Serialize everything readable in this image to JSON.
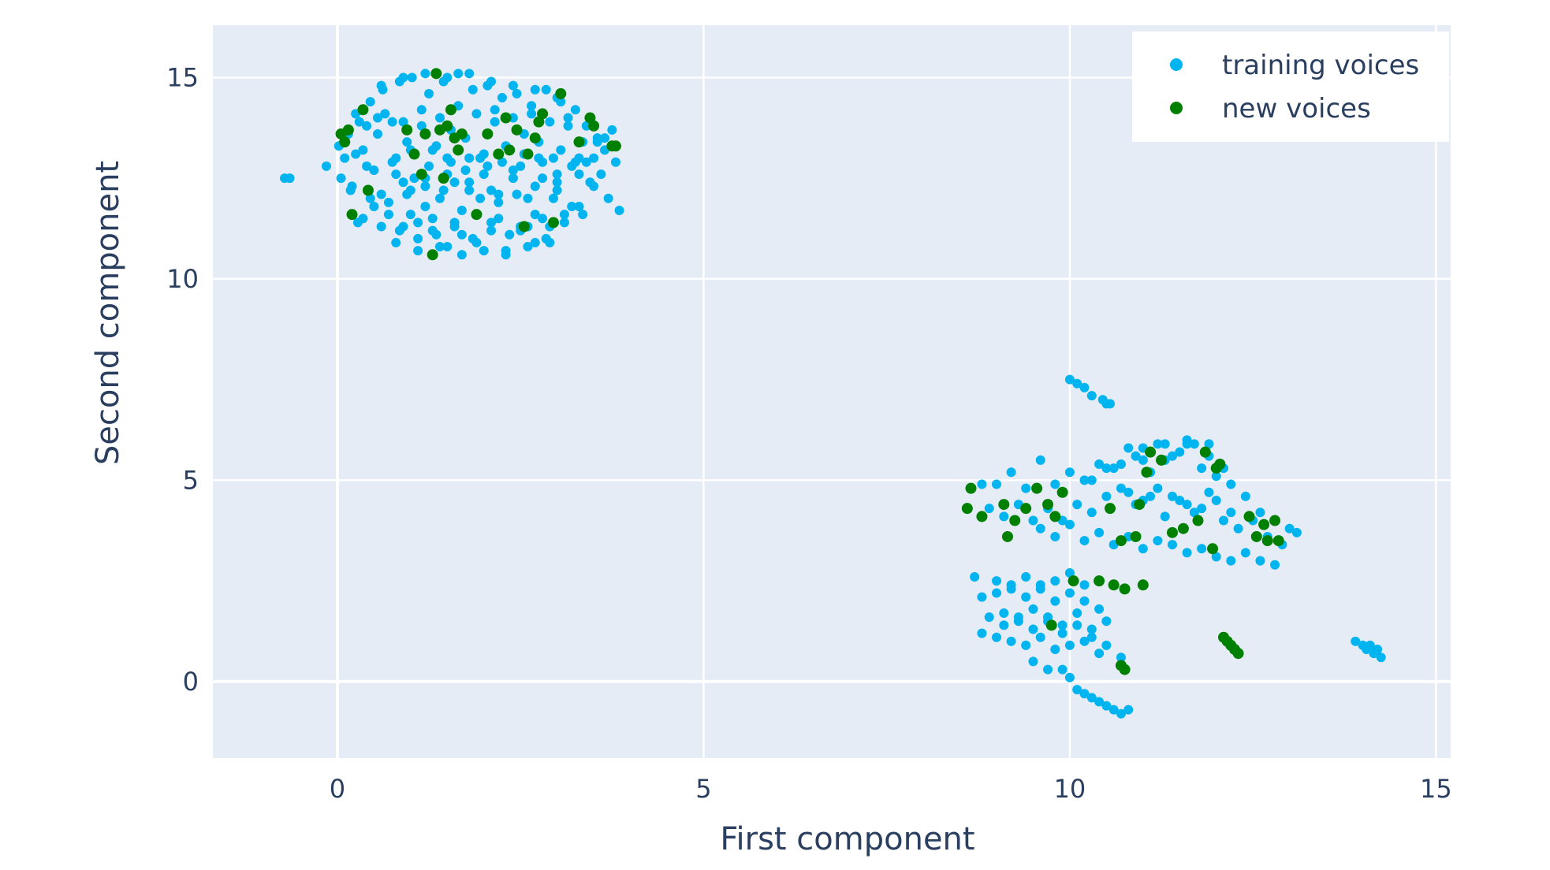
{
  "chart_data": {
    "type": "scatter",
    "title": "",
    "xlabel": "First component",
    "ylabel": "Second component",
    "xlim": [
      -1.7,
      15.2
    ],
    "ylim": [
      -1.9,
      16.3
    ],
    "x_ticks": [
      0,
      5,
      10,
      15
    ],
    "y_ticks": [
      0,
      5,
      10,
      15
    ],
    "x_tick_labels": [
      "0",
      "5",
      "10",
      "15"
    ],
    "y_tick_labels": [
      "0",
      "5",
      "10",
      "15"
    ],
    "grid": true,
    "plot_background": "#e5ecf6",
    "grid_color": "#ffffff",
    "legend_position": "top-right",
    "series": [
      {
        "name": "training voices",
        "color": "#00b4f0",
        "x": [
          -0.72,
          -0.65,
          -0.15,
          0.02,
          0.05,
          0.12,
          0.18,
          0.25,
          0.28,
          0.35,
          0.4,
          0.45,
          0.5,
          0.55,
          0.6,
          0.62,
          0.7,
          0.75,
          0.8,
          0.85,
          0.9,
          0.95,
          1.0,
          1.02,
          1.1,
          1.15,
          1.2,
          1.25,
          1.3,
          1.35,
          1.4,
          1.45,
          1.5,
          1.55,
          1.6,
          1.65,
          1.7,
          1.75,
          1.8,
          1.85,
          1.9,
          1.95,
          2.0,
          2.05,
          2.1,
          2.15,
          2.2,
          2.25,
          2.3,
          2.35,
          2.4,
          2.45,
          2.5,
          2.55,
          2.6,
          2.65,
          2.7,
          2.75,
          2.8,
          2.85,
          2.9,
          2.95,
          3.0,
          3.05,
          3.1,
          3.15,
          3.2,
          3.25,
          3.3,
          3.35,
          3.4,
          3.45,
          3.5,
          3.55,
          3.6,
          3.65,
          3.7,
          3.75,
          3.8,
          3.85,
          0.1,
          0.3,
          0.55,
          0.8,
          1.05,
          1.3,
          1.55,
          1.8,
          2.05,
          2.3,
          2.55,
          2.8,
          3.05,
          3.3,
          3.55,
          0.2,
          0.45,
          0.7,
          0.95,
          1.2,
          1.45,
          1.7,
          1.95,
          2.2,
          2.45,
          2.7,
          2.95,
          3.2,
          3.45,
          0.15,
          0.4,
          0.65,
          0.9,
          1.15,
          1.4,
          1.65,
          1.9,
          2.15,
          2.4,
          2.65,
          2.9,
          3.15,
          3.4,
          3.65,
          0.35,
          0.6,
          0.85,
          1.1,
          1.35,
          1.6,
          1.85,
          2.1,
          2.35,
          2.6,
          2.85,
          3.1,
          3.35,
          0.25,
          0.5,
          0.75,
          1.0,
          1.25,
          1.5,
          1.75,
          2.0,
          2.25,
          2.5,
          2.75,
          3.0,
          3.25,
          3.5,
          0.6,
          0.9,
          1.2,
          1.5,
          1.8,
          2.1,
          2.4,
          2.7,
          3.0,
          0.8,
          1.1,
          1.4,
          1.7,
          2.0,
          2.3,
          2.6,
          2.9,
          1.0,
          1.3,
          1.6,
          1.9,
          2.2,
          2.5,
          2.8,
          0.9,
          1.2,
          1.5,
          1.8,
          2.1,
          2.4,
          2.7,
          3.0,
          3.3,
          10.0,
          10.1,
          10.2,
          10.3,
          10.45,
          10.5,
          10.55,
          8.8,
          8.9,
          9.0,
          9.1,
          9.2,
          9.3,
          9.4,
          9.5,
          9.6,
          9.7,
          9.8,
          9.9,
          10.0,
          10.1,
          10.2,
          10.3,
          10.4,
          10.5,
          10.6,
          10.7,
          10.8,
          10.9,
          11.0,
          11.1,
          11.2,
          11.3,
          11.4,
          11.5,
          11.6,
          11.7,
          11.8,
          11.9,
          12.0,
          12.1,
          12.2,
          12.3,
          12.4,
          12.5,
          12.6,
          12.7,
          12.8,
          12.9,
          13.0,
          13.1,
          9.6,
          9.8,
          10.0,
          10.2,
          10.4,
          10.6,
          10.8,
          11.0,
          11.2,
          11.4,
          11.6,
          11.8,
          12.0,
          12.2,
          12.4,
          12.6,
          12.8,
          10.3,
          10.5,
          10.7,
          10.9,
          11.1,
          11.3,
          11.5,
          11.7,
          11.9,
          12.1,
          10.8,
          11.0,
          11.2,
          11.4,
          11.6,
          11.8,
          12.0,
          12.2,
          11.0,
          11.3,
          11.6,
          11.9,
          8.7,
          8.8,
          8.9,
          9.0,
          9.1,
          9.2,
          9.3,
          9.4,
          9.5,
          9.6,
          9.7,
          9.8,
          9.9,
          10.0,
          10.1,
          10.2,
          10.3,
          10.4,
          10.5,
          8.8,
          9.0,
          9.2,
          9.4,
          9.6,
          9.8,
          10.0,
          10.2,
          10.4,
          9.0,
          9.2,
          9.4,
          9.6,
          9.8,
          10.0,
          10.2,
          9.1,
          9.3,
          9.5,
          9.7,
          9.9,
          10.1,
          10.3,
          10.5,
          10.7,
          9.5,
          9.7,
          9.9,
          10.0,
          10.1,
          10.2,
          10.3,
          10.4,
          10.5,
          10.6,
          10.7,
          10.8,
          13.9,
          14.0,
          14.05,
          14.1,
          14.15,
          14.2,
          14.25
        ],
        "y": [
          12.5,
          12.5,
          12.8,
          13.3,
          12.5,
          13.6,
          12.2,
          14.1,
          11.4,
          13.2,
          12.8,
          14.4,
          11.8,
          13.6,
          12.1,
          14.7,
          11.6,
          13.9,
          12.6,
          14.9,
          11.3,
          13.4,
          12.2,
          15.0,
          11.0,
          13.8,
          12.5,
          14.6,
          11.2,
          13.3,
          12.0,
          14.9,
          10.8,
          13.7,
          12.4,
          15.1,
          11.1,
          13.5,
          12.2,
          14.7,
          10.9,
          13.0,
          12.6,
          14.8,
          11.4,
          13.9,
          12.1,
          14.5,
          10.7,
          13.2,
          12.7,
          14.6,
          11.2,
          13.6,
          12.0,
          14.3,
          10.9,
          13.4,
          12.5,
          14.7,
          11.3,
          13.0,
          12.2,
          14.4,
          11.6,
          13.8,
          12.8,
          14.2,
          11.8,
          13.4,
          12.9,
          13.9,
          12.3,
          13.5,
          12.6,
          13.2,
          12.0,
          13.7,
          12.9,
          11.7,
          13.0,
          13.9,
          14.0,
          13.0,
          12.5,
          13.2,
          12.9,
          13.0,
          12.8,
          13.3,
          13.1,
          12.9,
          13.2,
          13.0,
          13.4,
          12.3,
          12.0,
          11.9,
          12.1,
          11.8,
          12.2,
          11.7,
          12.0,
          11.9,
          12.1,
          11.6,
          12.0,
          11.8,
          12.4,
          13.6,
          13.8,
          14.1,
          13.9,
          14.2,
          14.0,
          14.3,
          14.1,
          14.2,
          14.0,
          14.1,
          13.9,
          14.0,
          13.8,
          13.5,
          11.5,
          11.3,
          11.2,
          11.4,
          11.1,
          11.3,
          11.0,
          11.2,
          11.1,
          11.3,
          11.0,
          11.4,
          11.6,
          13.1,
          12.7,
          12.9,
          13.2,
          12.8,
          13.0,
          12.7,
          13.1,
          12.9,
          12.8,
          13.0,
          12.6,
          12.9,
          13.0,
          14.8,
          15.0,
          15.1,
          15.0,
          15.1,
          14.9,
          14.8,
          14.7,
          14.5,
          10.9,
          10.7,
          10.8,
          10.6,
          10.7,
          10.6,
          10.8,
          10.9,
          11.6,
          11.5,
          11.4,
          11.6,
          11.5,
          11.3,
          11.5,
          12.4,
          12.3,
          12.6,
          12.4,
          12.2,
          12.5,
          12.3,
          12.4,
          12.6,
          7.5,
          7.4,
          7.3,
          7.1,
          7.0,
          6.9,
          6.9,
          4.9,
          4.3,
          4.9,
          4.1,
          5.2,
          4.4,
          4.8,
          4.0,
          5.5,
          4.3,
          4.9,
          4.0,
          5.2,
          4.4,
          5.0,
          4.2,
          5.4,
          4.6,
          5.3,
          4.8,
          5.8,
          4.4,
          5.5,
          4.6,
          5.9,
          4.1,
          5.6,
          4.5,
          5.9,
          4.2,
          5.3,
          4.7,
          5.1,
          4.0,
          4.9,
          3.8,
          4.6,
          4.0,
          4.2,
          3.6,
          4.0,
          3.4,
          3.8,
          3.7,
          3.8,
          3.6,
          3.9,
          3.5,
          3.7,
          3.4,
          3.6,
          3.3,
          3.5,
          3.4,
          3.2,
          3.3,
          3.1,
          3.0,
          3.2,
          3.0,
          2.9,
          5.0,
          5.3,
          5.4,
          5.6,
          5.2,
          5.5,
          5.7,
          5.9,
          5.6,
          5.3,
          4.7,
          4.5,
          4.8,
          4.6,
          4.4,
          4.3,
          4.5,
          4.2,
          5.8,
          5.9,
          6.0,
          5.9,
          2.6,
          2.1,
          1.6,
          2.2,
          1.7,
          2.3,
          1.5,
          2.1,
          1.8,
          2.4,
          1.6,
          2.0,
          1.4,
          2.2,
          1.7,
          2.0,
          1.3,
          1.8,
          1.5,
          1.2,
          1.1,
          1.0,
          0.9,
          1.1,
          0.8,
          0.9,
          1.0,
          0.7,
          2.5,
          2.4,
          2.6,
          2.3,
          2.5,
          2.7,
          2.4,
          1.4,
          1.6,
          1.3,
          1.5,
          1.2,
          1.4,
          1.1,
          0.9,
          0.6,
          0.5,
          0.3,
          0.3,
          0.1,
          -0.2,
          -0.3,
          -0.4,
          -0.5,
          -0.6,
          -0.7,
          -0.8,
          -0.7,
          1.0,
          0.9,
          0.8,
          0.9,
          0.7,
          0.8,
          0.6
        ]
      },
      {
        "name": "new voices",
        "color": "#008000",
        "x": [
          0.05,
          0.1,
          0.15,
          0.2,
          0.35,
          0.42,
          0.95,
          1.05,
          1.15,
          1.2,
          1.3,
          1.35,
          1.4,
          1.45,
          1.5,
          1.55,
          1.6,
          1.65,
          1.7,
          1.9,
          2.05,
          2.2,
          2.3,
          2.35,
          2.45,
          2.55,
          2.6,
          2.7,
          2.75,
          2.8,
          2.95,
          3.05,
          3.3,
          3.45,
          3.5,
          3.75,
          3.8,
          8.6,
          8.65,
          8.8,
          9.1,
          9.15,
          9.25,
          9.4,
          9.55,
          9.7,
          9.8,
          9.9,
          10.05,
          10.4,
          10.55,
          10.6,
          10.7,
          10.75,
          10.9,
          10.95,
          11.0,
          11.05,
          11.1,
          11.25,
          11.4,
          11.55,
          11.75,
          11.85,
          11.95,
          12.0,
          12.05,
          12.1,
          12.15,
          12.2,
          12.25,
          12.3,
          12.45,
          12.55,
          12.65,
          12.7,
          12.8,
          12.85,
          10.7,
          10.75,
          9.75
        ],
        "y": [
          13.6,
          13.4,
          13.7,
          11.6,
          14.2,
          12.2,
          13.7,
          13.1,
          12.6,
          13.6,
          10.6,
          15.1,
          13.7,
          12.5,
          13.8,
          14.2,
          13.5,
          13.2,
          13.6,
          11.6,
          13.6,
          13.1,
          14.0,
          13.2,
          13.7,
          11.3,
          13.1,
          13.5,
          13.9,
          14.1,
          11.4,
          14.6,
          13.4,
          14.0,
          13.8,
          13.3,
          13.3,
          4.3,
          4.8,
          4.1,
          4.4,
          3.6,
          4.0,
          4.3,
          4.8,
          4.4,
          4.1,
          4.7,
          2.5,
          2.5,
          4.3,
          2.4,
          3.5,
          2.3,
          3.6,
          4.4,
          2.4,
          5.2,
          5.7,
          5.5,
          3.7,
          3.8,
          4.0,
          5.7,
          3.3,
          5.3,
          5.4,
          1.1,
          1.0,
          0.9,
          0.8,
          0.7,
          4.1,
          3.6,
          3.9,
          3.5,
          4.0,
          3.5,
          0.4,
          0.3,
          1.4
        ]
      }
    ]
  }
}
